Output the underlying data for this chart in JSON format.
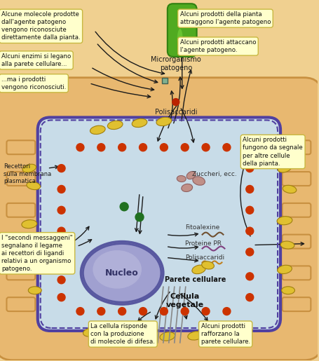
{
  "bg_color": "#f0d090",
  "cell_wall_color": "#e8b870",
  "cell_wall_dark": "#c89040",
  "cell_interior_color": "#c8dce8",
  "membrane_color": "#5040a0",
  "nucleus_fill": "#a0a0d0",
  "nucleus_border": "#5858a0",
  "nucleus_inner": "#c0c0e0",
  "bacterium_color": "#50aa20",
  "bacterium_dark": "#308010",
  "text_box_fill": "#ffffcc",
  "text_box_edge": "#c8b840",
  "arrow_color": "#1a1a1a",
  "receptor_color": "#cc3300",
  "yellow_oval_fill": "#e0c030",
  "yellow_oval_edge": "#a08010",
  "green_dot": "#207020",
  "labels": {
    "bacterium": "Microrganismo\npatogeno",
    "polisaccaridi_top": "Polisaccaridi",
    "polisaccaridi_bottom": "Polisaccaridi",
    "zuccheri": "Zuccheri, ecc.",
    "fitoalexine": "Fitoalexine",
    "proteine_pr": "Proteine PR",
    "nucleo": "Nucleo",
    "parete_cellulare": "Parete cellulare",
    "cellula_vegetale": "Cellula\nvegetale",
    "recettori": "Recettori\nsulla membrana\nplasmatica",
    "box1": "Alcune molecole prodotte\ndall'agente patogeno\nvengono riconosciute\ndirettamente dalla pianta.",
    "box2": "Alcuni enzimi si legano\nalla parete cellulare...",
    "box3": "...ma i prodotti\nvengono riconosciuti.",
    "box4": "Alcuni prodotti della pianta\nattraggono l'agente patogeno",
    "box5": "Alcuni prodotti attaccano\nl'agente patogeno.",
    "box6": "Alcuni prodotti\nfungono da segnale\nper altre cellule\ndella pianta.",
    "box7": "I \"secondi messaggeni\"\nsegnalano il legame\nai recettori di ligandi\nrelativi a un organismo\npatogeno.",
    "box8": "La cellula risponde\ncon la produzione\ndi molecole di difesa.",
    "box9": "Alcuni prodotti\nrafforzano la\nparete cellulare."
  }
}
